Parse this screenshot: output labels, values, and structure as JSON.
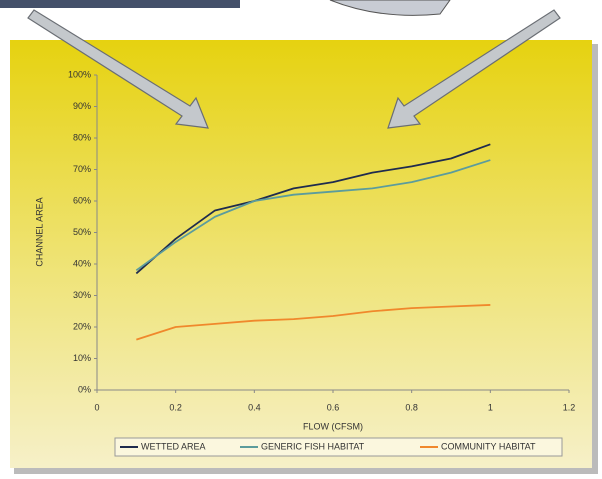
{
  "chart_data": {
    "type": "line",
    "x_label": "FLOW (CFSM)",
    "y_label": "CHANNEL AREA",
    "x": [
      0.1,
      0.2,
      0.3,
      0.4,
      0.5,
      0.6,
      0.7,
      0.8,
      0.9,
      1.0
    ],
    "series": [
      {
        "name": "WETTED AREA",
        "color": "#1f2b4e",
        "values": [
          37,
          48,
          57,
          60,
          64,
          66,
          69,
          71,
          73.5,
          78
        ]
      },
      {
        "name": "GENERIC FISH HABITAT",
        "color": "#5c9c9c",
        "values": [
          38,
          47,
          55,
          60,
          62,
          63,
          64,
          66,
          69,
          73
        ]
      },
      {
        "name": "COMMUNITY HABITAT",
        "color": "#f0882c",
        "values": [
          16,
          20,
          21,
          22,
          22.5,
          23.5,
          25,
          26,
          26.5,
          27
        ]
      }
    ],
    "xlim": [
      0,
      1.2
    ],
    "xticks": [
      0,
      0.2,
      0.4,
      0.6,
      0.8,
      1,
      1.2
    ],
    "ylim": [
      0,
      100
    ],
    "yticks": [
      {
        "value": 0,
        "label": "0%"
      },
      {
        "value": 10,
        "label": "10%"
      },
      {
        "value": 20,
        "label": "20%"
      },
      {
        "value": 30,
        "label": "30%"
      },
      {
        "value": 40,
        "label": "40%"
      },
      {
        "value": 50,
        "label": "50%"
      },
      {
        "value": 60,
        "label": "60%"
      },
      {
        "value": 70,
        "label": "70%"
      },
      {
        "value": 80,
        "label": "80%"
      },
      {
        "value": 90,
        "label": "90%"
      },
      {
        "value": 100,
        "label": "100%"
      }
    ],
    "grid": false,
    "legend": "bottom"
  }
}
